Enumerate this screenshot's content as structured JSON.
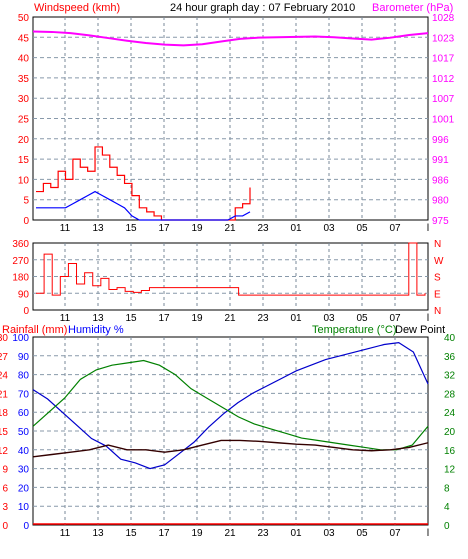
{
  "header": {
    "windspeed_label": "Windspeed (kmh)",
    "title": "24 hour graph day : 07 February 2010",
    "barometer_label": "Barometer (hPa)"
  },
  "bottom_labels": {
    "rainfall_label": "Rainfall (mm)",
    "humidity_label": "Humidity %",
    "temperature_label": "Temperature (°C)",
    "dewpoint_label": "Dew Point"
  },
  "colors": {
    "wind_axis": "#ff0000",
    "baro_axis": "#ff00ff",
    "rain_axis": "#ff0000",
    "hum_axis": "#0000ff",
    "temp_axis": "#008000",
    "gust": "#ff0000",
    "wind_avg": "#0000ff",
    "wind_green": "#008000",
    "barometer": "#ff00ff",
    "direction": "#ff0000",
    "humidity": "#0000cc",
    "temperature": "#008000",
    "dewpoint": "#330000",
    "rain": "#ff0000"
  },
  "chart_data": [
    {
      "type": "line",
      "name": "wind-barometer",
      "x_ticks": [
        "11",
        "13",
        "15",
        "17",
        "19",
        "21",
        "23",
        "01",
        "03",
        "05",
        "07",
        "l"
      ],
      "ylabel_left": "Windspeed (kmh)",
      "ylabel_right": "Barometer (hPa)",
      "ylim_left": [
        0,
        50
      ],
      "left_ticks": [
        "0",
        "5",
        "10",
        "15",
        "20",
        "25",
        "30",
        "35",
        "40",
        "45",
        "50"
      ],
      "ylim_right": [
        975,
        1028
      ],
      "right_ticks": [
        "975",
        "980",
        "986",
        "991",
        "996",
        "1001",
        "1007",
        "1012",
        "1017",
        "1023",
        "1028"
      ],
      "barometer": [
        1024.2,
        1024.1,
        1023.8,
        1023.2,
        1022.5,
        1021.8,
        1021.2,
        1020.8,
        1020.6,
        1020.9,
        1021.6,
        1022.3,
        1022.6,
        1022.7,
        1022.8,
        1022.9,
        1022.7,
        1022.4,
        1022.1,
        1022.6,
        1023.3,
        1023.8
      ],
      "gust": [
        7,
        9,
        8,
        12,
        10,
        15,
        13,
        12,
        18,
        16,
        13,
        11,
        9,
        6,
        3,
        2,
        1,
        0,
        0,
        0,
        0,
        0,
        0,
        0,
        0,
        0,
        0,
        3,
        4,
        8
      ],
      "wind_avg": [
        3,
        3,
        3,
        3,
        3,
        4,
        5,
        6,
        7,
        6,
        5,
        4,
        3,
        1,
        0,
        0,
        0,
        0,
        0,
        0,
        0,
        0,
        0,
        0,
        0,
        0,
        0,
        1,
        1,
        2
      ]
    },
    {
      "type": "line",
      "name": "wind-direction",
      "x_ticks": [
        "11",
        "13",
        "15",
        "17",
        "19",
        "21",
        "23",
        "01",
        "03",
        "05",
        "07",
        "l"
      ],
      "ylim_left": [
        0,
        360
      ],
      "left_ticks": [
        "0",
        "90",
        "180",
        "270",
        "360"
      ],
      "right_ticks": [
        "N",
        "E",
        "S",
        "W",
        "N"
      ],
      "direction": [
        90,
        300,
        80,
        180,
        250,
        140,
        200,
        130,
        170,
        110,
        120,
        100,
        95,
        105,
        120,
        120,
        120,
        120,
        120,
        120,
        120,
        120,
        120,
        120,
        120,
        80,
        80,
        80,
        80,
        80,
        80,
        80,
        80,
        80,
        80,
        80,
        80,
        80,
        80,
        80,
        80,
        80,
        80,
        80,
        80,
        80,
        360,
        80,
        90
      ]
    },
    {
      "type": "line",
      "name": "temp-humidity",
      "x_ticks": [
        "11",
        "13",
        "15",
        "17",
        "19",
        "21",
        "23",
        "01",
        "03",
        "05",
        "07",
        "l"
      ],
      "ylabel_left_rain": "Rainfall (mm)",
      "ylabel_left_hum": "Humidity %",
      "ylabel_right": "Temperature (°C)",
      "series_label_right": "Dew Point",
      "rain_ticks": [
        "0",
        "3",
        "6",
        "9",
        "12",
        "15",
        "18",
        "21",
        "24",
        "27",
        "30"
      ],
      "hum_ticks": [
        "0",
        "10",
        "20",
        "30",
        "40",
        "50",
        "60",
        "70",
        "80",
        "90",
        "100"
      ],
      "temp_ticks": [
        "0",
        "4",
        "8",
        "12",
        "16",
        "20",
        "24",
        "28",
        "32",
        "36",
        "40"
      ],
      "ylim_temp": [
        0,
        40
      ],
      "ylim_hum": [
        0,
        100
      ],
      "humidity": [
        72,
        67,
        60,
        53,
        46,
        42,
        35,
        33,
        30,
        32,
        38,
        44,
        52,
        59,
        65,
        70,
        74,
        78,
        82,
        85,
        88,
        90,
        92,
        94,
        96,
        97,
        92,
        75
      ],
      "temperature": [
        21,
        24,
        27,
        31,
        33,
        34,
        34.5,
        35,
        34,
        32,
        29,
        27,
        25,
        23,
        21.5,
        20.5,
        19.5,
        18.5,
        18,
        17.5,
        17,
        16.5,
        16,
        16,
        17,
        21
      ],
      "dewpoint": [
        14.5,
        15,
        15.5,
        16,
        17,
        16,
        16,
        15.5,
        16,
        17,
        18,
        18,
        17.8,
        17.5,
        17.2,
        17,
        16.5,
        16,
        15.8,
        16,
        16.5,
        17.5
      ]
    }
  ]
}
